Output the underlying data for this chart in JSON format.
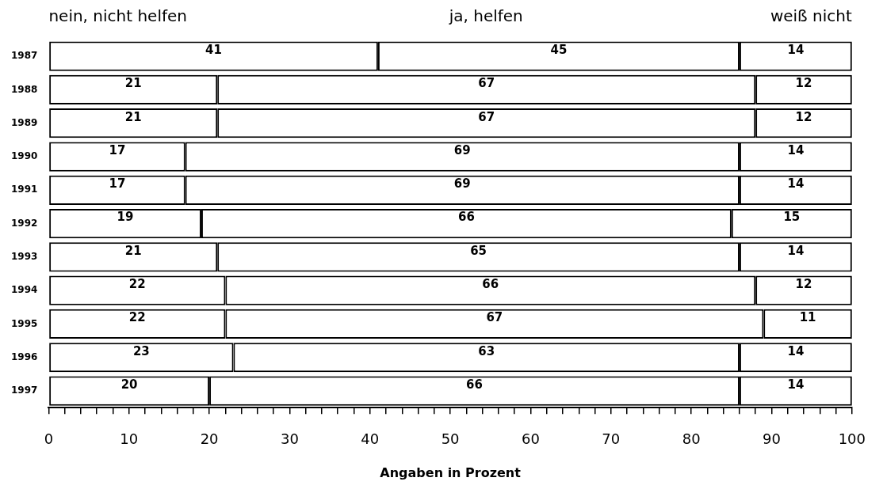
{
  "chart_data": {
    "type": "bar",
    "orientation": "horizontal",
    "stacked": true,
    "xlabel": "Angaben in Prozent",
    "categories": [
      "1987",
      "1988",
      "1989",
      "1990",
      "1991",
      "1992",
      "1993",
      "1994",
      "1995",
      "1996",
      "1997"
    ],
    "series": [
      {
        "name": "nein, nicht helfen",
        "color": "#ffffff",
        "values": [
          41,
          21,
          21,
          17,
          17,
          19,
          21,
          22,
          22,
          23,
          20
        ]
      },
      {
        "name": "ja, helfen",
        "color": "#ffffff",
        "values": [
          45,
          67,
          67,
          69,
          69,
          66,
          65,
          66,
          67,
          63,
          66
        ]
      },
      {
        "name": "weiß nicht",
        "color": "#ffffff",
        "values": [
          14,
          12,
          12,
          14,
          14,
          15,
          14,
          12,
          11,
          14,
          14
        ]
      }
    ],
    "xlim": [
      0,
      100
    ],
    "xticks": [
      0,
      {
        "value": 2,
        "label": null
      },
      {
        "value": 4,
        "label": null
      },
      {
        "value": 6,
        "label": null
      },
      {
        "value": 8,
        "label": null
      },
      10,
      {
        "value": 12,
        "label": null
      },
      {
        "value": 14,
        "label": null
      },
      {
        "value": 16,
        "label": null
      },
      {
        "value": 18,
        "label": null
      },
      20,
      {
        "value": 22,
        "label": null
      },
      {
        "value": 24,
        "label": null
      },
      {
        "value": 26,
        "label": null
      },
      {
        "value": 28,
        "label": null
      },
      30,
      {
        "value": 32,
        "label": null
      },
      {
        "value": 34,
        "label": null
      },
      {
        "value": 36,
        "label": null
      },
      {
        "value": 38,
        "label": null
      },
      40,
      {
        "value": 42,
        "label": null
      },
      {
        "value": 44,
        "label": null
      },
      {
        "value": 46,
        "label": null
      },
      {
        "value": 48,
        "label": null
      },
      50,
      {
        "value": 52,
        "label": null
      },
      {
        "value": 54,
        "label": null
      },
      {
        "value": 56,
        "label": null
      },
      {
        "value": 58,
        "label": null
      },
      60,
      {
        "value": 62,
        "label": null
      },
      {
        "value": 64,
        "label": null
      },
      {
        "value": 66,
        "label": null
      },
      {
        "value": 68,
        "label": null
      },
      70,
      {
        "value": 72,
        "label": null
      },
      {
        "value": 74,
        "label": null
      },
      {
        "value": 76,
        "label": null
      },
      {
        "value": 78,
        "label": null
      },
      80,
      {
        "value": 82,
        "label": null
      },
      {
        "value": 84,
        "label": null
      },
      {
        "value": 86,
        "label": null
      },
      {
        "value": 88,
        "label": null
      },
      90,
      {
        "value": 92,
        "label": null
      },
      {
        "value": 94,
        "label": null
      },
      {
        "value": 96,
        "label": null
      },
      {
        "value": 98,
        "label": null
      },
      100
    ],
    "grid": false,
    "legend": false,
    "data_labels": true
  }
}
